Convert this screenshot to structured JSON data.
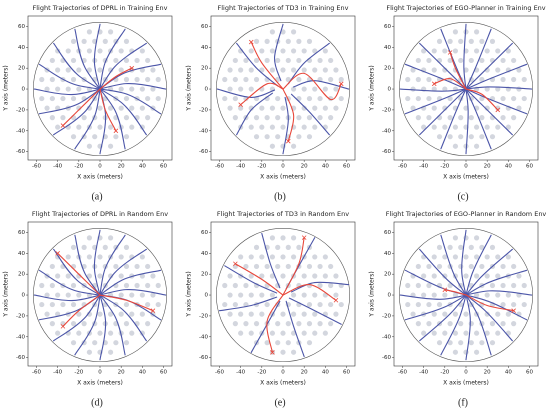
{
  "chart_data": [
    {
      "type": "line",
      "title": "Flight Trajectories of DPRL in Training Env",
      "xlabel": "X axis (meters)",
      "ylabel": "Y axis (meters)",
      "caption": "(a)",
      "xlim": [
        -68,
        68
      ],
      "ylim": [
        -68,
        70
      ],
      "xticks": [
        -60,
        -40,
        -20,
        0,
        20,
        40,
        60
      ],
      "yticks": [
        -60,
        -40,
        -20,
        0,
        20,
        40,
        60
      ],
      "series": [
        {
          "color": "#4b55a8",
          "x": [
            62,
            24.5,
            -24.5,
            -62
          ],
          "values": [
            0,
            5.2,
            -5.2,
            0
          ]
        },
        {
          "color": "#4b55a8",
          "x": [
            57.3,
            20.6,
            -20.6,
            -57.3
          ],
          "values": [
            23.7,
            14.2,
            -14.2,
            -23.7
          ]
        },
        {
          "color": "#4b55a8",
          "x": [
            43.8,
            13.6,
            -13.6,
            -43.8
          ],
          "values": [
            43.8,
            21.0,
            -21.0,
            -43.8
          ]
        },
        {
          "color": "#4b55a8",
          "x": [
            23.7,
            4.6,
            -4.6,
            -23.7
          ],
          "values": [
            57.3,
            24.6,
            -24.6,
            -57.3
          ]
        },
        {
          "color": "#4b55a8",
          "x": [
            0,
            -5.2,
            5.2,
            0
          ],
          "values": [
            62,
            24.5,
            -24.5,
            -62
          ]
        },
        {
          "color": "#4b55a8",
          "x": [
            -23.7,
            -14.2,
            14.2,
            23.7
          ],
          "values": [
            57.3,
            20.6,
            -20.6,
            -57.3
          ]
        },
        {
          "color": "#4b55a8",
          "x": [
            -43.8,
            -21.0,
            21.0,
            43.8
          ],
          "values": [
            43.8,
            13.6,
            -13.6,
            -43.8
          ]
        },
        {
          "color": "#4b55a8",
          "x": [
            -57.3,
            -24.6,
            24.6,
            57.3
          ],
          "values": [
            23.7,
            4.6,
            -4.6,
            -23.7
          ]
        },
        {
          "color": "#e8473a",
          "x": [
            0,
            15,
            30
          ],
          "values": [
            0,
            12,
            20
          ]
        },
        {
          "color": "#e8473a",
          "x": [
            0,
            5,
            15
          ],
          "values": [
            0,
            -20,
            -40
          ]
        },
        {
          "color": "#e8473a",
          "x": [
            0,
            -20,
            -35
          ],
          "values": [
            0,
            -20,
            -35
          ]
        }
      ]
    },
    {
      "type": "line",
      "title": "Flight Trajectories of TD3 in Training Env",
      "xlabel": "X axis (meters)",
      "ylabel": "Y axis (meters)",
      "caption": "(b)",
      "xlim": [
        -68,
        68
      ],
      "ylim": [
        -68,
        70
      ],
      "xticks": [
        -60,
        -40,
        -20,
        0,
        20,
        40,
        60
      ],
      "yticks": [
        -60,
        -40,
        -20,
        0,
        20,
        40,
        60
      ],
      "series": [
        {
          "color": "#4b55a8",
          "x": [
            62,
            30,
            10
          ],
          "values": [
            0,
            8,
            2
          ]
        },
        {
          "color": "#4b55a8",
          "x": [
            43.8,
            20,
            5
          ],
          "values": [
            43.8,
            25,
            5
          ]
        },
        {
          "color": "#4b55a8",
          "x": [
            0,
            -8,
            -2
          ],
          "values": [
            62,
            30,
            8
          ]
        },
        {
          "color": "#4b55a8",
          "x": [
            -43.8,
            -25,
            -5
          ],
          "values": [
            43.8,
            20,
            3
          ]
        },
        {
          "color": "#4b55a8",
          "x": [
            -62,
            -30,
            -8
          ],
          "values": [
            0,
            -8,
            -1
          ]
        },
        {
          "color": "#4b55a8",
          "x": [
            -43.8,
            -30,
            -10
          ],
          "values": [
            -43.8,
            -20,
            -4
          ]
        },
        {
          "color": "#4b55a8",
          "x": [
            0,
            5,
            2
          ],
          "values": [
            -62,
            -30,
            -8
          ]
        },
        {
          "color": "#4b55a8",
          "x": [
            43.8,
            25,
            8
          ],
          "values": [
            -43.8,
            -22,
            -5
          ]
        },
        {
          "color": "#e8473a",
          "x": [
            0,
            20,
            45,
            55
          ],
          "values": [
            0,
            15,
            -10,
            5
          ]
        },
        {
          "color": "#e8473a",
          "x": [
            0,
            -15,
            -40
          ],
          "values": [
            0,
            5,
            -15
          ]
        },
        {
          "color": "#e8473a",
          "x": [
            0,
            10,
            5
          ],
          "values": [
            0,
            -25,
            -50
          ]
        },
        {
          "color": "#e8473a",
          "x": [
            0,
            -20,
            -30
          ],
          "values": [
            0,
            25,
            45
          ]
        }
      ]
    },
    {
      "type": "line",
      "title": "Flight Trajectories of EGO-Planner in Training Env",
      "xlabel": "X axis (meters)",
      "ylabel": "Y axis (meters)",
      "caption": "(c)",
      "xlim": [
        -68,
        68
      ],
      "ylim": [
        -68,
        70
      ],
      "xticks": [
        -60,
        -40,
        -20,
        0,
        20,
        40,
        60
      ],
      "yticks": [
        -60,
        -40,
        -20,
        0,
        20,
        40,
        60
      ],
      "series": [
        {
          "color": "#4b55a8",
          "x": [
            62,
            20,
            -20,
            -62
          ],
          "values": [
            0,
            2,
            -2,
            0
          ]
        },
        {
          "color": "#4b55a8",
          "x": [
            57.3,
            18,
            -18,
            -57.3
          ],
          "values": [
            23.7,
            8,
            -8,
            -23.7
          ]
        },
        {
          "color": "#4b55a8",
          "x": [
            43.8,
            14,
            -14,
            -43.8
          ],
          "values": [
            43.8,
            14,
            -14,
            -43.8
          ]
        },
        {
          "color": "#4b55a8",
          "x": [
            23.7,
            8,
            -8,
            -23.7
          ],
          "values": [
            57.3,
            18,
            -18,
            -57.3
          ]
        },
        {
          "color": "#4b55a8",
          "x": [
            0,
            -2,
            2,
            0
          ],
          "values": [
            62,
            20,
            -20,
            -62
          ]
        },
        {
          "color": "#4b55a8",
          "x": [
            -23.7,
            -8,
            8,
            23.7
          ],
          "values": [
            57.3,
            18,
            -18,
            -57.3
          ]
        },
        {
          "color": "#4b55a8",
          "x": [
            -43.8,
            -14,
            14,
            43.8
          ],
          "values": [
            43.8,
            14,
            -14,
            -43.8
          ]
        },
        {
          "color": "#4b55a8",
          "x": [
            -57.3,
            -18,
            18,
            57.3
          ],
          "values": [
            23.7,
            8,
            -8,
            -23.7
          ]
        },
        {
          "color": "#e8473a",
          "x": [
            0,
            -15,
            -30
          ],
          "values": [
            0,
            10,
            5
          ]
        },
        {
          "color": "#e8473a",
          "x": [
            0,
            15,
            30
          ],
          "values": [
            0,
            -5,
            -20
          ]
        },
        {
          "color": "#e8473a",
          "x": [
            0,
            -10,
            -15
          ],
          "values": [
            0,
            20,
            35
          ]
        }
      ]
    },
    {
      "type": "line",
      "title": "Flight Trajectories of DPRL in Random Env",
      "xlabel": "X axis (meters)",
      "ylabel": "Y axis (meters)",
      "caption": "(d)",
      "xlim": [
        -68,
        68
      ],
      "ylim": [
        -68,
        70
      ],
      "xticks": [
        -60,
        -40,
        -20,
        0,
        20,
        40,
        60
      ],
      "yticks": [
        -60,
        -40,
        -20,
        0,
        20,
        40,
        60
      ],
      "series": [
        {
          "color": "#4b55a8",
          "x": [
            62,
            24.5,
            -24.5,
            -62
          ],
          "values": [
            0,
            5.2,
            -5.2,
            0
          ]
        },
        {
          "color": "#4b55a8",
          "x": [
            57.3,
            20.6,
            -20.6,
            -57.3
          ],
          "values": [
            23.7,
            14.2,
            -14.2,
            -23.7
          ]
        },
        {
          "color": "#4b55a8",
          "x": [
            43.8,
            13.6,
            -13.6,
            -43.8
          ],
          "values": [
            43.8,
            21.0,
            -21.0,
            -43.8
          ]
        },
        {
          "color": "#4b55a8",
          "x": [
            23.7,
            4.6,
            -4.6,
            -23.7
          ],
          "values": [
            57.3,
            24.6,
            -24.6,
            -57.3
          ]
        },
        {
          "color": "#4b55a8",
          "x": [
            0,
            -5.2,
            5.2,
            0
          ],
          "values": [
            62,
            24.5,
            -24.5,
            -62
          ]
        },
        {
          "color": "#4b55a8",
          "x": [
            -23.7,
            -14.2,
            14.2,
            23.7
          ],
          "values": [
            57.3,
            20.6,
            -20.6,
            -57.3
          ]
        },
        {
          "color": "#4b55a8",
          "x": [
            -43.8,
            -21.0,
            21.0,
            43.8
          ],
          "values": [
            43.8,
            13.6,
            -13.6,
            -43.8
          ]
        },
        {
          "color": "#4b55a8",
          "x": [
            -57.3,
            -24.6,
            24.6,
            57.3
          ],
          "values": [
            23.7,
            4.6,
            -4.6,
            -23.7
          ]
        },
        {
          "color": "#e8473a",
          "x": [
            0,
            -20,
            -35
          ],
          "values": [
            0,
            -15,
            -30
          ]
        },
        {
          "color": "#e8473a",
          "x": [
            0,
            25,
            50
          ],
          "values": [
            0,
            -5,
            -15
          ]
        },
        {
          "color": "#e8473a",
          "x": [
            0,
            -20,
            -40
          ],
          "values": [
            0,
            20,
            40
          ]
        }
      ]
    },
    {
      "type": "line",
      "title": "Flight Trajectories of TD3 in Random Env",
      "xlabel": "X axis (meters)",
      "ylabel": "Y axis (meters)",
      "caption": "(e)",
      "xlim": [
        -68,
        68
      ],
      "ylim": [
        -68,
        70
      ],
      "xticks": [
        -60,
        -40,
        -20,
        0,
        20,
        40,
        60
      ],
      "yticks": [
        -60,
        -40,
        -20,
        0,
        20,
        40,
        60
      ],
      "series": [
        {
          "color": "#4b55a8",
          "x": [
            62,
            30,
            8
          ],
          "values": [
            10,
            12,
            3
          ]
        },
        {
          "color": "#4b55a8",
          "x": [
            30,
            15,
            3
          ],
          "values": [
            55,
            28,
            6
          ]
        },
        {
          "color": "#4b55a8",
          "x": [
            -20,
            -12,
            -3
          ],
          "values": [
            59,
            30,
            7
          ]
        },
        {
          "color": "#4b55a8",
          "x": [
            -55,
            -28,
            -6
          ],
          "values": [
            28,
            12,
            2
          ]
        },
        {
          "color": "#4b55a8",
          "x": [
            -60,
            -30,
            -6
          ],
          "values": [
            -15,
            -10,
            -2
          ]
        },
        {
          "color": "#4b55a8",
          "x": [
            -30,
            -15,
            -3
          ],
          "values": [
            -55,
            -28,
            -6
          ]
        },
        {
          "color": "#4b55a8",
          "x": [
            20,
            10,
            3
          ],
          "values": [
            -59,
            -30,
            -6
          ]
        },
        {
          "color": "#4b55a8",
          "x": [
            55,
            28,
            6
          ],
          "values": [
            -28,
            -14,
            -3
          ]
        },
        {
          "color": "#e8473a",
          "x": [
            0,
            25,
            50
          ],
          "values": [
            0,
            10,
            -5
          ]
        },
        {
          "color": "#e8473a",
          "x": [
            0,
            -15,
            -10
          ],
          "values": [
            0,
            -25,
            -55
          ]
        },
        {
          "color": "#e8473a",
          "x": [
            0,
            -20,
            -45
          ],
          "values": [
            0,
            15,
            30
          ]
        },
        {
          "color": "#e8473a",
          "x": [
            0,
            15,
            20
          ],
          "values": [
            0,
            30,
            55
          ]
        }
      ]
    },
    {
      "type": "line",
      "title": "Flight Trajectories of EGO-Planner in Random Env",
      "xlabel": "X axis (meters)",
      "ylabel": "Y axis (meters)",
      "caption": "(f)",
      "xlim": [
        -68,
        68
      ],
      "ylim": [
        -68,
        70
      ],
      "xticks": [
        -60,
        -40,
        -20,
        0,
        20,
        40,
        60
      ],
      "yticks": [
        -60,
        -40,
        -20,
        0,
        20,
        40,
        60
      ],
      "series": [
        {
          "color": "#4b55a8",
          "x": [
            62,
            22,
            -22,
            -62
          ],
          "values": [
            0,
            4,
            -4,
            0
          ]
        },
        {
          "color": "#4b55a8",
          "x": [
            57.3,
            19,
            -19,
            -57.3
          ],
          "values": [
            23.7,
            11,
            -11,
            -23.7
          ]
        },
        {
          "color": "#4b55a8",
          "x": [
            43.8,
            14,
            -14,
            -43.8
          ],
          "values": [
            43.8,
            17,
            -17,
            -43.8
          ]
        },
        {
          "color": "#4b55a8",
          "x": [
            23.7,
            6,
            -6,
            -23.7
          ],
          "values": [
            57.3,
            21,
            -21,
            -57.3
          ]
        },
        {
          "color": "#4b55a8",
          "x": [
            0,
            -4,
            4,
            0
          ],
          "values": [
            62,
            22,
            -22,
            -62
          ]
        },
        {
          "color": "#4b55a8",
          "x": [
            -23.7,
            -11,
            11,
            23.7
          ],
          "values": [
            57.3,
            19,
            -19,
            -57.3
          ]
        },
        {
          "color": "#4b55a8",
          "x": [
            -43.8,
            -17,
            17,
            43.8
          ],
          "values": [
            43.8,
            14,
            -14,
            -43.8
          ]
        },
        {
          "color": "#4b55a8",
          "x": [
            -57.3,
            -21,
            21,
            57.3
          ],
          "values": [
            23.7,
            6,
            -6,
            -23.7
          ]
        },
        {
          "color": "#e8473a",
          "x": [
            0,
            20,
            45
          ],
          "values": [
            0,
            -10,
            -15
          ]
        },
        {
          "color": "#e8473a",
          "x": [
            0,
            -10,
            -20
          ],
          "values": [
            0,
            3,
            5
          ]
        }
      ]
    }
  ]
}
